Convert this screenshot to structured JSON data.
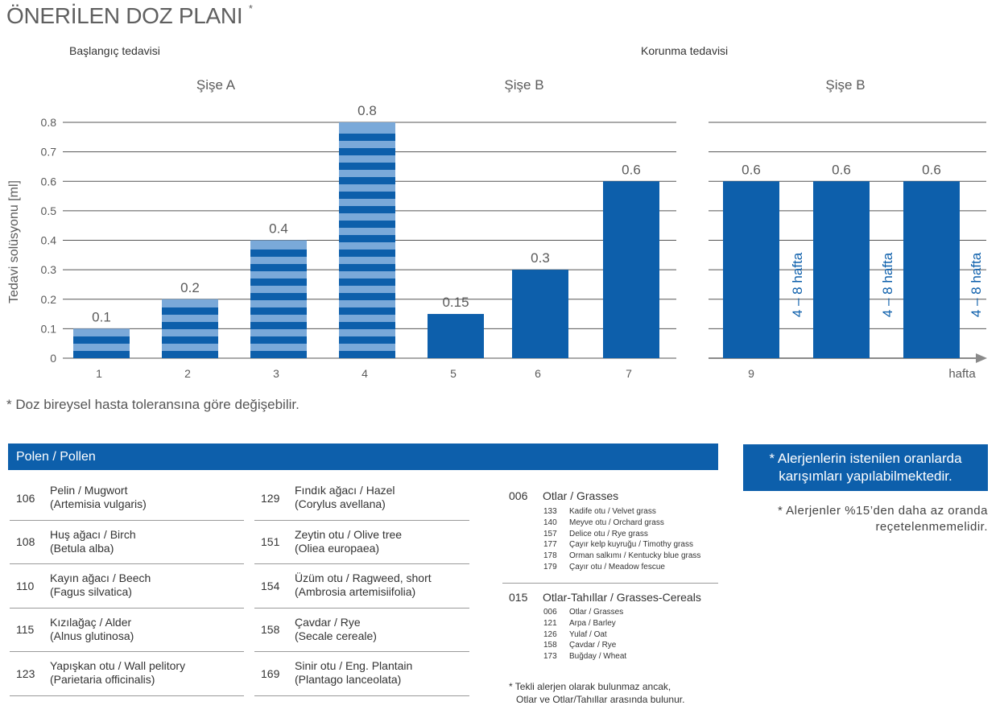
{
  "title": {
    "text": "ÖNERİLEN DOZ PLANI",
    "marker": "*"
  },
  "sections": {
    "initial": "Başlangıç tedavisi",
    "maintenance": "Korunma tedavisi"
  },
  "colors": {
    "primary": "#0d5fab",
    "stripe_light": "#7aa9d9",
    "grid": "#555555",
    "axis_arrow": "#8a8a8a",
    "text": "#5a5a5a"
  },
  "chart_data": [
    {
      "type": "bar",
      "panel": "initial",
      "ylabel": "Tedavi solüsyonu [ml]",
      "xlabel": "",
      "ylim": [
        0,
        0.8
      ],
      "yticks": [
        0,
        0.1,
        0.2,
        0.3,
        0.4,
        0.5,
        0.6,
        0.7,
        0.8
      ],
      "ytick_labels": [
        "0",
        "0.1",
        "0.2",
        "0.3",
        "0.4",
        "0.5",
        "0.6",
        "0.7",
        "0.8"
      ],
      "grid": true,
      "groups": [
        {
          "label": "Şişe A",
          "categories": [
            "1",
            "2",
            "3",
            "4"
          ]
        },
        {
          "label": "Şişe B",
          "categories": [
            "5",
            "6",
            "7"
          ]
        }
      ],
      "categories": [
        "1",
        "2",
        "3",
        "4",
        "5",
        "6",
        "7"
      ],
      "values": [
        0.1,
        0.2,
        0.4,
        0.8,
        0.15,
        0.3,
        0.6
      ],
      "value_labels": [
        "0.1",
        "0.2",
        "0.4",
        "0.8",
        "0.15",
        "0.3",
        "0.6"
      ],
      "styles": [
        "striped",
        "striped",
        "striped",
        "striped",
        "solid",
        "solid",
        "solid"
      ]
    },
    {
      "type": "bar",
      "panel": "maintenance",
      "group_label": "Şişe B",
      "ylim": [
        0,
        0.8
      ],
      "grid": true,
      "values": [
        0.6,
        0.6,
        0.6
      ],
      "value_labels": [
        "0.6",
        "0.6",
        "0.6"
      ],
      "x_tick_labels": [
        "9",
        "",
        ""
      ],
      "x_unit_label": "hafta",
      "interval_labels": [
        "4 – 8 hafta",
        "4 – 8 hafta",
        "4 – 8 hafta"
      ]
    }
  ],
  "footnote": "* Doz bireysel hasta toleransına göre değişebilir.",
  "pollen": {
    "header": "Polen / Pollen",
    "column1": [
      {
        "code": "106",
        "name": "Pelin / Mugwort",
        "latin": "(Artemisia vulgaris)"
      },
      {
        "code": "108",
        "name": "Huş ağacı / Birch",
        "latin": "(Betula alba)"
      },
      {
        "code": "110",
        "name": "Kayın ağacı / Beech",
        "latin": "(Fagus silvatica)"
      },
      {
        "code": "115",
        "name": "Kızılağaç / Alder",
        "latin": "(Alnus glutinosa)"
      },
      {
        "code": "123",
        "name": "Yapışkan otu / Wall pelitory",
        "latin": "(Parietaria officinalis)"
      }
    ],
    "column2": [
      {
        "code": "129",
        "name": "Fındık ağacı / Hazel",
        "latin": "(Corylus avellana)"
      },
      {
        "code": "151",
        "name": "Zeytin otu / Olive tree",
        "latin": "(Oliea europaea)"
      },
      {
        "code": "154",
        "name": "Üzüm otu / Ragweed, short",
        "latin": "(Ambrosia artemisiifolia)"
      },
      {
        "code": "158",
        "name": "Çavdar / Rye",
        "latin": "(Secale cereale)"
      },
      {
        "code": "169",
        "name": "Sinir otu /  Eng. Plantain",
        "latin": "(Plantago lanceolata)"
      }
    ],
    "groups": [
      {
        "code": "006",
        "title": "Otlar / Grasses",
        "items": [
          {
            "code": "133",
            "name": "Kadife otu / Velvet grass"
          },
          {
            "code": "140",
            "name": "Meyve otu / Orchard grass"
          },
          {
            "code": "157",
            "name": "Delice otu / Rye grass"
          },
          {
            "code": "177",
            "name": "Çayır kelp kuyruğu / Timothy grass"
          },
          {
            "code": "178",
            "name": "Orman salkımı / Kentucky blue grass"
          },
          {
            "code": "179",
            "name": "Çayır otu / Meadow fescue"
          }
        ]
      },
      {
        "code": "015",
        "title": "Otlar-Tahıllar / Grasses-Cereals",
        "items": [
          {
            "code": "006",
            "name": "Otlar / Grasses"
          },
          {
            "code": "121",
            "name": "Arpa / Barley"
          },
          {
            "code": "126",
            "name": "Yulaf / Oat"
          },
          {
            "code": "158",
            "name": "Çavdar / Rye"
          },
          {
            "code": "173",
            "name": "Buğday / Wheat"
          }
        ]
      }
    ],
    "group_note_line1": "* Tekli alerjen olarak bulunmaz ancak,",
    "group_note_line2": "Otlar ve Otlar/Tahıllar arasında bulunur."
  },
  "info_box": {
    "line1": "* Alerjenlerin istenilen oranlarda",
    "line2": "karışımları yapılabilmektedir."
  },
  "info_note": {
    "line1": "* Alerjenler %15’den daha az oranda",
    "line2": "reçetelenmemelidir."
  }
}
